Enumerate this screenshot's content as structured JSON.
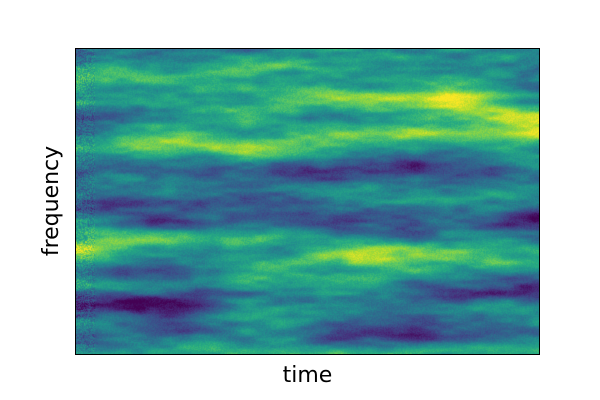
{
  "chart_data": {
    "type": "heatmap",
    "title": "",
    "xlabel": "time",
    "ylabel": "frequency",
    "xticks": [],
    "yticks": [],
    "colormap": "viridis",
    "colorbar": false,
    "grid": false,
    "structure": {
      "style": "noisy spectrogram with drifting bands",
      "bands": [
        {
          "center": 0.14,
          "slope": 0.1,
          "sign": 1,
          "strength": 0.55
        },
        {
          "center": 0.3,
          "slope": -0.06,
          "sign": 1,
          "strength": 0.6
        },
        {
          "center": 0.4,
          "slope": 0.04,
          "sign": -1,
          "strength": 0.4
        },
        {
          "center": 0.55,
          "slope": 0.0,
          "sign": -1,
          "strength": 0.55
        },
        {
          "center": 0.68,
          "slope": 0.05,
          "sign": 1,
          "strength": 0.45
        },
        {
          "center": 0.82,
          "slope": -0.03,
          "sign": -1,
          "strength": 0.5
        },
        {
          "center": 0.93,
          "slope": 0.0,
          "sign": -1,
          "strength": 0.45
        }
      ]
    }
  }
}
